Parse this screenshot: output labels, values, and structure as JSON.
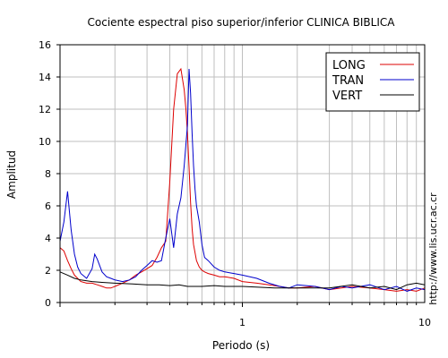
{
  "chart_data": {
    "type": "line",
    "title": "Cociente espectral piso superior/inferior  CLINICA BIBLICA",
    "xlabel": "Periodo (s)",
    "ylabel": "Amplitud",
    "side_note": "http://www.lis.ucr.ac.cr",
    "x_scale": "log",
    "xlim": [
      0.1,
      10
    ],
    "ylim": [
      0,
      16
    ],
    "x_tick_labels": [
      {
        "value": 1,
        "label": "1"
      },
      {
        "value": 10,
        "label": "10"
      }
    ],
    "y_ticks": [
      0,
      2,
      4,
      6,
      8,
      10,
      12,
      14,
      16
    ],
    "grid": true,
    "legend_position": "top-right",
    "series": [
      {
        "name": "LONG",
        "color": "#dd0000",
        "x": [
          0.1,
          0.105,
          0.11,
          0.115,
          0.12,
          0.13,
          0.14,
          0.15,
          0.16,
          0.17,
          0.18,
          0.19,
          0.2,
          0.22,
          0.24,
          0.26,
          0.28,
          0.3,
          0.32,
          0.34,
          0.36,
          0.38,
          0.4,
          0.42,
          0.44,
          0.46,
          0.48,
          0.49,
          0.5,
          0.51,
          0.52,
          0.53,
          0.54,
          0.56,
          0.58,
          0.6,
          0.62,
          0.65,
          0.7,
          0.75,
          0.8,
          0.9,
          1.0,
          1.2,
          1.4,
          1.6,
          1.8,
          2.0,
          2.5,
          3.0,
          3.5,
          4.0,
          5.0,
          6.0,
          7.0,
          8.0,
          9.0,
          10.0
        ],
        "y": [
          3.4,
          3.2,
          2.6,
          2.1,
          1.7,
          1.3,
          1.2,
          1.2,
          1.1,
          1.0,
          0.9,
          0.9,
          1.0,
          1.2,
          1.4,
          1.7,
          1.9,
          2.1,
          2.3,
          2.8,
          3.4,
          3.8,
          7.5,
          12.0,
          14.2,
          14.5,
          13.2,
          12.0,
          10.5,
          8.4,
          6.2,
          4.6,
          3.6,
          2.6,
          2.2,
          2.0,
          1.9,
          1.8,
          1.7,
          1.6,
          1.6,
          1.5,
          1.3,
          1.2,
          1.1,
          1.0,
          0.9,
          0.9,
          1.0,
          0.8,
          0.9,
          1.0,
          0.9,
          0.8,
          0.7,
          0.8,
          0.7,
          0.9
        ]
      },
      {
        "name": "TRAN",
        "color": "#0000cc",
        "x": [
          0.1,
          0.105,
          0.11,
          0.115,
          0.12,
          0.125,
          0.13,
          0.14,
          0.15,
          0.155,
          0.16,
          0.17,
          0.18,
          0.19,
          0.2,
          0.22,
          0.24,
          0.26,
          0.28,
          0.3,
          0.32,
          0.34,
          0.36,
          0.38,
          0.4,
          0.42,
          0.44,
          0.46,
          0.48,
          0.5,
          0.51,
          0.52,
          0.53,
          0.54,
          0.55,
          0.56,
          0.58,
          0.6,
          0.62,
          0.65,
          0.7,
          0.75,
          0.8,
          0.9,
          1.0,
          1.2,
          1.4,
          1.6,
          1.8,
          2.0,
          2.5,
          3.0,
          3.5,
          4.0,
          5.0,
          6.0,
          7.0,
          8.0,
          9.0,
          10.0
        ],
        "y": [
          3.8,
          5.0,
          6.9,
          4.5,
          3.0,
          2.2,
          1.8,
          1.5,
          2.1,
          3.0,
          2.7,
          1.9,
          1.6,
          1.5,
          1.4,
          1.3,
          1.4,
          1.6,
          2.0,
          2.3,
          2.6,
          2.5,
          2.6,
          4.0,
          5.2,
          3.4,
          5.5,
          6.5,
          8.5,
          11.0,
          14.5,
          13.0,
          10.5,
          8.5,
          7.0,
          6.0,
          5.0,
          3.6,
          2.8,
          2.6,
          2.2,
          2.0,
          1.9,
          1.8,
          1.7,
          1.5,
          1.2,
          1.0,
          0.9,
          1.1,
          1.0,
          0.8,
          1.0,
          0.9,
          1.1,
          0.8,
          1.0,
          0.7,
          0.9,
          0.8
        ]
      },
      {
        "name": "VERT",
        "color": "#000000",
        "x": [
          0.1,
          0.11,
          0.12,
          0.13,
          0.15,
          0.17,
          0.2,
          0.25,
          0.3,
          0.35,
          0.4,
          0.45,
          0.5,
          0.6,
          0.7,
          0.8,
          1.0,
          1.5,
          2.0,
          3.0,
          4.0,
          5.0,
          6.0,
          7.0,
          8.0,
          9.0,
          10.0
        ],
        "y": [
          1.9,
          1.7,
          1.5,
          1.4,
          1.3,
          1.25,
          1.2,
          1.15,
          1.1,
          1.1,
          1.05,
          1.1,
          1.0,
          1.0,
          1.05,
          1.0,
          1.0,
          0.9,
          0.9,
          0.9,
          1.1,
          0.9,
          1.0,
          0.8,
          1.1,
          1.2,
          1.1
        ]
      }
    ]
  }
}
